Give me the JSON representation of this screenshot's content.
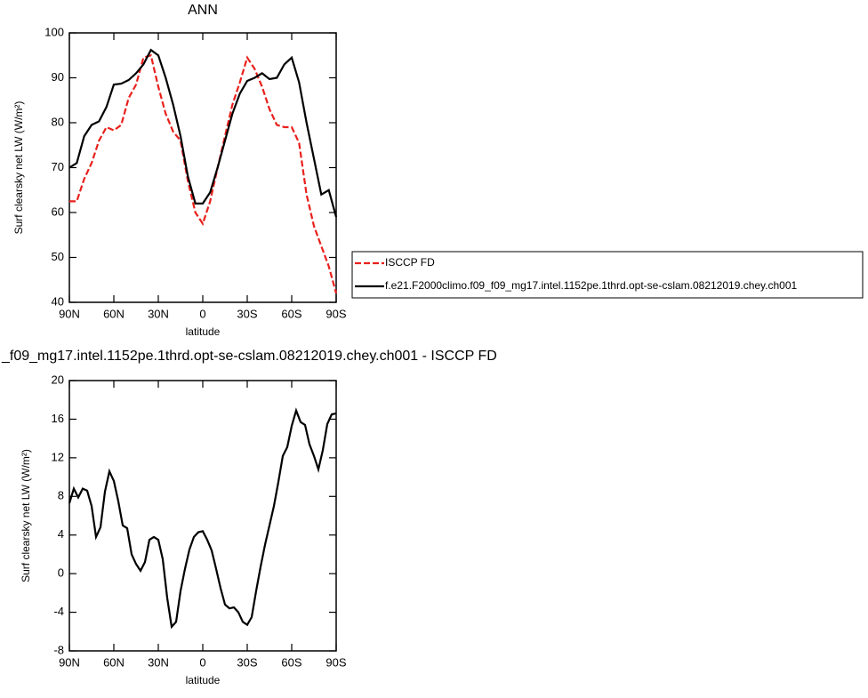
{
  "chart_data": [
    {
      "type": "line",
      "title": "ANN",
      "x_label": "latitude",
      "y_label": "Surf clearsky net LW (W/m²)",
      "x": [
        90,
        85,
        80,
        75,
        70,
        65,
        60,
        55,
        50,
        45,
        40,
        35,
        30,
        25,
        20,
        15,
        10,
        5,
        0,
        -5,
        -10,
        -15,
        -20,
        -25,
        -30,
        -35,
        -40,
        -45,
        -50,
        -55,
        -60,
        -65,
        -70,
        -75,
        -80,
        -85,
        -90
      ],
      "xlim": [
        90,
        -90
      ],
      "xticks": [
        {
          "value": 90,
          "label": "90N"
        },
        {
          "value": 60,
          "label": "60N"
        },
        {
          "value": 30,
          "label": "30N"
        },
        0,
        {
          "value": -30,
          "label": "30S"
        },
        {
          "value": -60,
          "label": "60S"
        },
        {
          "value": -90,
          "label": "90S"
        }
      ],
      "ylim": [
        40,
        100
      ],
      "yticks": [
        40,
        50,
        60,
        70,
        80,
        90,
        100
      ],
      "legend": "right",
      "series": [
        {
          "name": "ISCCP FD",
          "color": "#e8201c",
          "dash": true,
          "values": [
            62.5,
            62.5,
            67.5,
            71,
            76,
            79,
            78.3,
            79.5,
            85.5,
            88.5,
            94.5,
            95,
            88,
            82,
            78,
            76,
            67,
            60,
            57.5,
            62.5,
            70,
            77,
            84,
            89,
            94.5,
            92,
            88,
            83,
            79.5,
            79,
            79,
            75.5,
            64,
            57,
            52.5,
            48,
            42
          ]
        },
        {
          "name": "f.e21.F2000climo.f09_f09_mg17.intel.1152pe.1thrd.opt-se-cslam.08212019.chey.ch001",
          "color": "#000000",
          "dash": false,
          "values": [
            70,
            71,
            77,
            79.5,
            80.3,
            83.5,
            88.5,
            88.7,
            89.5,
            91,
            93,
            96.2,
            95,
            90,
            84,
            77,
            68,
            62,
            62,
            64.5,
            70,
            76,
            82,
            86.5,
            89.3,
            90,
            91,
            89.7,
            90,
            93,
            94.5,
            89,
            80,
            72,
            64,
            65,
            59
          ]
        }
      ]
    },
    {
      "type": "line",
      "title": "_f09_mg17.intel.1152pe.1thrd.opt-se-cslam.08212019.chey.ch001 - ISCCP FD",
      "x_label": "latitude",
      "y_label": "Surf clearsky net LW (W/m²)",
      "x": [
        90,
        87,
        84,
        81,
        78,
        75,
        72,
        69,
        66,
        63,
        60,
        57,
        54,
        51,
        48,
        45,
        42,
        39,
        36,
        33,
        30,
        27,
        24,
        21,
        18,
        15,
        12,
        9,
        6,
        3,
        0,
        -3,
        -6,
        -9,
        -12,
        -15,
        -18,
        -21,
        -24,
        -27,
        -30,
        -33,
        -36,
        -39,
        -42,
        -45,
        -48,
        -51,
        -54,
        -57,
        -60,
        -63,
        -66,
        -69,
        -72,
        -75,
        -78,
        -81,
        -84,
        -87,
        -90
      ],
      "xlim": [
        90,
        -90
      ],
      "xticks": [
        {
          "value": 90,
          "label": "90N"
        },
        {
          "value": 60,
          "label": "60N"
        },
        {
          "value": 30,
          "label": "30N"
        },
        0,
        {
          "value": -30,
          "label": "30S"
        },
        {
          "value": -60,
          "label": "60S"
        },
        {
          "value": -90,
          "label": "90S"
        }
      ],
      "ylim": [
        -8,
        20
      ],
      "yticks": [
        -8,
        -4,
        0,
        4,
        8,
        12,
        16,
        20
      ],
      "series": [
        {
          "color": "#000000",
          "dash": false,
          "values": [
            7.3,
            8.8,
            7.9,
            8.8,
            8.6,
            7,
            3.8,
            4.8,
            8.5,
            10.6,
            9.6,
            7.5,
            5,
            4.7,
            2,
            1,
            0.3,
            1.2,
            3.5,
            3.8,
            3.5,
            1.5,
            -2.5,
            -5.5,
            -5,
            -1.8,
            0.5,
            2.5,
            3.8,
            4.3,
            4.4,
            3.5,
            2.4,
            0.5,
            -1.5,
            -3.2,
            -3.6,
            -3.5,
            -4,
            -5,
            -5.3,
            -4.5,
            -1.8,
            0.7,
            3,
            5,
            7,
            9.5,
            12.2,
            13.1,
            15.3,
            16.9,
            15.7,
            15.4,
            13.4,
            12.2,
            10.8,
            12.8,
            15.5,
            16.5,
            16.6
          ]
        }
      ]
    }
  ]
}
